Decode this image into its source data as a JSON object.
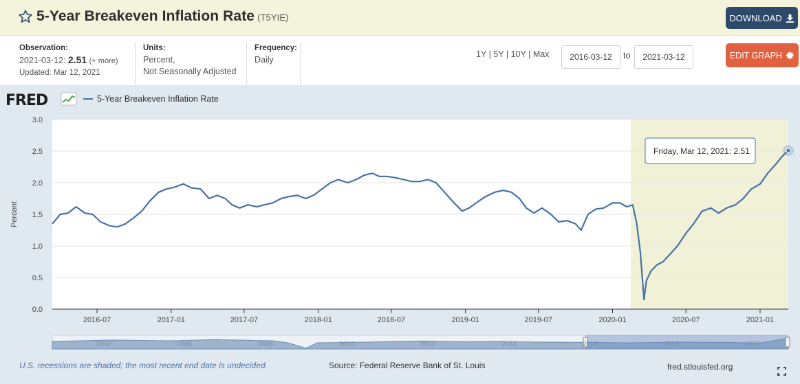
{
  "header": {
    "title": "5-Year Breakeven Inflation Rate",
    "series_id": "(T5YIE)",
    "download_label": "DOWNLOAD"
  },
  "meta": {
    "observation_label": "Observation:",
    "observation_date": "2021-03-12:",
    "observation_value": "2.51",
    "observation_more": "(+ more)",
    "updated": "Updated: Mar 12, 2021",
    "units_label": "Units:",
    "units_line1": "Percent,",
    "units_line2": "Not Seasonally Adjusted",
    "frequency_label": "Frequency:",
    "frequency": "Daily"
  },
  "controls": {
    "range_1y": "1Y",
    "range_5y": "5Y",
    "range_10y": "10Y",
    "range_max": "Max",
    "sep": "|",
    "start_date": "2016-03-12",
    "to_label": "to",
    "end_date": "2021-03-12",
    "edit_label": "EDIT GRAPH"
  },
  "logo": "FRED",
  "footer": {
    "recession_note": "U.S. recessions are shaded; the most recent end date is undecided.",
    "source": "Source: Federal Reserve Bank of St. Louis",
    "url": "fred.stlouisfed.org"
  },
  "colors": {
    "series": "#4572a7",
    "recession": "#f1f1d8",
    "download": "#2e4a6b",
    "edit": "#e0603f"
  },
  "chart_data": {
    "type": "line",
    "title": "",
    "xlabel": "",
    "ylabel": "Percent",
    "ylim": [
      0,
      3
    ],
    "yticks": [
      "0.0",
      "0.5",
      "1.0",
      "1.5",
      "2.0",
      "2.5",
      "3.0"
    ],
    "xticks": [
      "2016-07",
      "2017-01",
      "2017-07",
      "2018-01",
      "2018-07",
      "2019-01",
      "2019-07",
      "2020-01",
      "2020-07",
      "2021-01"
    ],
    "xlim": [
      "2016-03-12",
      "2021-03-12"
    ],
    "grid": true,
    "legend": "top-left",
    "recession": {
      "start": "2020-02-15",
      "end": "2021-03-12"
    },
    "tooltip": "Friday, Mar 12, 2021: 2.51",
    "navigator_labels": [
      "2004",
      "2006",
      "2008",
      "2010",
      "2012",
      "2014",
      "2016",
      "2018",
      "2020"
    ],
    "series": [
      {
        "name": "5-Year Breakeven Inflation Rate",
        "points": [
          [
            "2016-03-12",
            1.35
          ],
          [
            "2016-04-01",
            1.5
          ],
          [
            "2016-04-20",
            1.52
          ],
          [
            "2016-05-10",
            1.62
          ],
          [
            "2016-06-01",
            1.52
          ],
          [
            "2016-06-20",
            1.5
          ],
          [
            "2016-07-10",
            1.38
          ],
          [
            "2016-08-01",
            1.32
          ],
          [
            "2016-08-20",
            1.3
          ],
          [
            "2016-09-10",
            1.35
          ],
          [
            "2016-10-01",
            1.45
          ],
          [
            "2016-10-20",
            1.55
          ],
          [
            "2016-11-10",
            1.72
          ],
          [
            "2016-12-01",
            1.85
          ],
          [
            "2016-12-20",
            1.9
          ],
          [
            "2017-01-10",
            1.93
          ],
          [
            "2017-01-31",
            1.98
          ],
          [
            "2017-02-20",
            1.92
          ],
          [
            "2017-03-15",
            1.9
          ],
          [
            "2017-04-05",
            1.75
          ],
          [
            "2017-04-25",
            1.8
          ],
          [
            "2017-05-15",
            1.75
          ],
          [
            "2017-06-01",
            1.65
          ],
          [
            "2017-06-20",
            1.6
          ],
          [
            "2017-07-10",
            1.65
          ],
          [
            "2017-08-01",
            1.62
          ],
          [
            "2017-08-20",
            1.65
          ],
          [
            "2017-09-10",
            1.68
          ],
          [
            "2017-10-01",
            1.75
          ],
          [
            "2017-10-20",
            1.78
          ],
          [
            "2017-11-10",
            1.8
          ],
          [
            "2017-12-01",
            1.75
          ],
          [
            "2017-12-20",
            1.8
          ],
          [
            "2018-01-10",
            1.9
          ],
          [
            "2018-01-31",
            2.0
          ],
          [
            "2018-02-20",
            2.05
          ],
          [
            "2018-03-15",
            2.0
          ],
          [
            "2018-04-05",
            2.05
          ],
          [
            "2018-04-25",
            2.12
          ],
          [
            "2018-05-15",
            2.15
          ],
          [
            "2018-06-01",
            2.1
          ],
          [
            "2018-06-20",
            2.1
          ],
          [
            "2018-07-10",
            2.08
          ],
          [
            "2018-08-01",
            2.05
          ],
          [
            "2018-08-20",
            2.02
          ],
          [
            "2018-09-10",
            2.02
          ],
          [
            "2018-09-30",
            2.05
          ],
          [
            "2018-10-20",
            2.0
          ],
          [
            "2018-11-10",
            1.85
          ],
          [
            "2018-12-01",
            1.7
          ],
          [
            "2018-12-24",
            1.55
          ],
          [
            "2019-01-10",
            1.6
          ],
          [
            "2019-02-01",
            1.7
          ],
          [
            "2019-02-20",
            1.78
          ],
          [
            "2019-03-15",
            1.85
          ],
          [
            "2019-04-05",
            1.88
          ],
          [
            "2019-04-25",
            1.85
          ],
          [
            "2019-05-15",
            1.75
          ],
          [
            "2019-06-01",
            1.6
          ],
          [
            "2019-06-20",
            1.52
          ],
          [
            "2019-07-10",
            1.6
          ],
          [
            "2019-08-01",
            1.5
          ],
          [
            "2019-08-20",
            1.38
          ],
          [
            "2019-09-10",
            1.4
          ],
          [
            "2019-10-01",
            1.35
          ],
          [
            "2019-10-15",
            1.25
          ],
          [
            "2019-11-01",
            1.5
          ],
          [
            "2019-11-20",
            1.58
          ],
          [
            "2019-12-10",
            1.6
          ],
          [
            "2020-01-01",
            1.68
          ],
          [
            "2020-01-20",
            1.68
          ],
          [
            "2020-02-05",
            1.62
          ],
          [
            "2020-02-20",
            1.65
          ],
          [
            "2020-03-01",
            1.35
          ],
          [
            "2020-03-10",
            0.9
          ],
          [
            "2020-03-19",
            0.15
          ],
          [
            "2020-03-25",
            0.45
          ],
          [
            "2020-04-05",
            0.6
          ],
          [
            "2020-04-20",
            0.7
          ],
          [
            "2020-05-05",
            0.75
          ],
          [
            "2020-05-20",
            0.85
          ],
          [
            "2020-06-10",
            1.0
          ],
          [
            "2020-07-01",
            1.2
          ],
          [
            "2020-07-20",
            1.35
          ],
          [
            "2020-08-10",
            1.55
          ],
          [
            "2020-09-01",
            1.6
          ],
          [
            "2020-09-20",
            1.52
          ],
          [
            "2020-10-10",
            1.6
          ],
          [
            "2020-11-01",
            1.65
          ],
          [
            "2020-11-20",
            1.75
          ],
          [
            "2020-12-10",
            1.9
          ],
          [
            "2021-01-01",
            1.98
          ],
          [
            "2021-01-20",
            2.15
          ],
          [
            "2021-02-10",
            2.3
          ],
          [
            "2021-02-25",
            2.42
          ],
          [
            "2021-03-12",
            2.51
          ]
        ]
      }
    ]
  }
}
